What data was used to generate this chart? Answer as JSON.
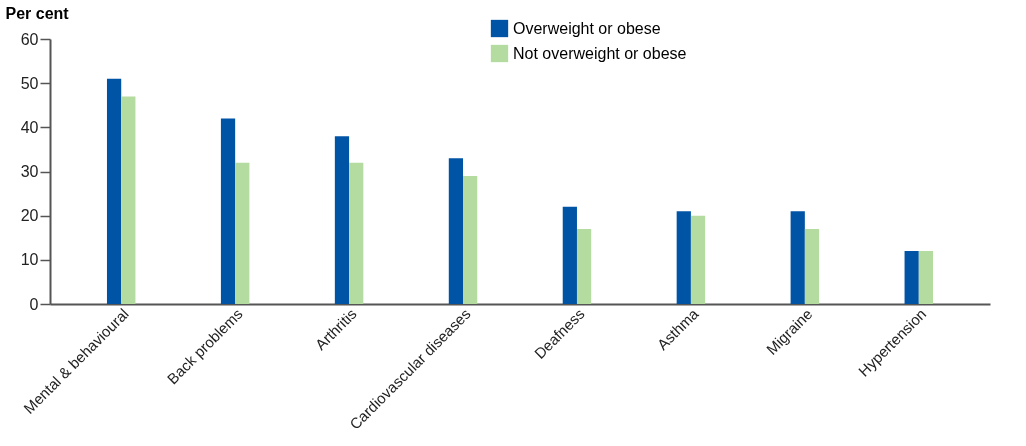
{
  "chart_data": {
    "type": "bar",
    "ylabel": "Per cent",
    "categories": [
      "Mental & behavioural",
      "Back problems",
      "Arthritis",
      "Cardiovascular diseases",
      "Deafness",
      "Asthma",
      "Migraine",
      "Hypertension"
    ],
    "series": [
      {
        "name": "Overweight or obese",
        "color": "#0054a6",
        "values": [
          51,
          42,
          38,
          33,
          22,
          21,
          21,
          12
        ]
      },
      {
        "name": "Not overweight or obese",
        "color": "#b5dca0",
        "values": [
          47,
          32,
          32,
          29,
          17,
          20,
          17,
          12
        ]
      }
    ],
    "ylim": [
      0,
      60
    ],
    "yticks": [
      0,
      10,
      20,
      30,
      40,
      50,
      60
    ],
    "grid": false,
    "legend": "top"
  }
}
